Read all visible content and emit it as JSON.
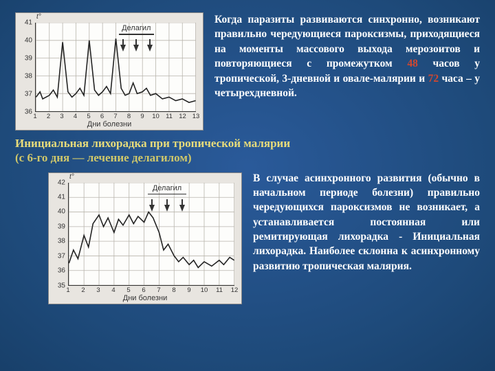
{
  "para1": {
    "t1": "Когда паразиты развиваются синхронно, возникают правильно чередующиеся пароксизмы, приходящиеся на моменты массового выхода мерозоитов и повторяющиеся с промежутком ",
    "h1": "48",
    "t2": " часов у ",
    "b1": "тропической, 3-дневной и овале-малярии",
    "t3": " и ",
    "h2": "72",
    "t4": " часа – у ",
    "b2": "четырехдневной",
    "t5": "."
  },
  "caption": {
    "line1": "Инициальная лихорадка при тропической малярии",
    "line2": "(с 6-го дня — лечение делагилом)"
  },
  "para2": {
    "t1": "В случае асинхронного развития (обычно в начальном периоде болезни) правильно чередующихся пароксизмов не возникает, а устанавливается постоянная или ремитирующая лихорадка - ",
    "b1": "Инициальная лихорадка",
    "t2": ". Наиболее склонна к асинхронному развитию тропическая малярия."
  },
  "chart1": {
    "y_axis_title": "t°",
    "x_axis_title": "Дни болезни",
    "drug_label": "Делагил",
    "y_min": 36,
    "y_max": 41,
    "y_ticks": [
      36,
      37,
      38,
      39,
      40,
      41
    ],
    "x_min": 1,
    "x_max": 13,
    "x_ticks": [
      1,
      2,
      3,
      4,
      5,
      6,
      7,
      8,
      9,
      10,
      11,
      12,
      13
    ],
    "grid_color": "#b8b4ac",
    "line_color": "#222222",
    "line_width": 1.6,
    "bg": "#fdfdfb",
    "series": [
      [
        1,
        36.8
      ],
      [
        1.3,
        37.1
      ],
      [
        1.5,
        36.7
      ],
      [
        2,
        36.9
      ],
      [
        2.3,
        37.2
      ],
      [
        2.6,
        36.8
      ],
      [
        3,
        39.9
      ],
      [
        3.4,
        37.1
      ],
      [
        3.7,
        36.8
      ],
      [
        4,
        37.0
      ],
      [
        4.3,
        37.3
      ],
      [
        4.6,
        36.9
      ],
      [
        5,
        40.0
      ],
      [
        5.4,
        37.2
      ],
      [
        5.7,
        36.9
      ],
      [
        6,
        37.1
      ],
      [
        6.3,
        37.4
      ],
      [
        6.6,
        37.0
      ],
      [
        7,
        40.1
      ],
      [
        7.4,
        37.3
      ],
      [
        7.7,
        36.9
      ],
      [
        8,
        37.0
      ],
      [
        8.3,
        37.6
      ],
      [
        8.6,
        37.0
      ],
      [
        9,
        37.1
      ],
      [
        9.3,
        37.3
      ],
      [
        9.6,
        36.9
      ],
      [
        10,
        37.0
      ],
      [
        10.5,
        36.7
      ],
      [
        11,
        36.8
      ],
      [
        11.5,
        36.6
      ],
      [
        12,
        36.7
      ],
      [
        12.5,
        36.5
      ],
      [
        13,
        36.6
      ]
    ],
    "arrows_x": [
      7.5,
      8.5,
      9.5
    ]
  },
  "chart2": {
    "y_axis_title": "t°",
    "x_axis_title": "Дни болезни",
    "drug_label": "Делагил",
    "y_min": 35,
    "y_max": 42,
    "y_ticks": [
      35,
      36,
      37,
      38,
      39,
      40,
      41,
      42
    ],
    "x_min": 1,
    "x_max": 12,
    "x_ticks": [
      1,
      2,
      3,
      4,
      5,
      6,
      7,
      8,
      9,
      10,
      11,
      12
    ],
    "grid_color": "#b8b4ac",
    "line_color": "#222222",
    "line_width": 1.6,
    "bg": "#fdfdfb",
    "series": [
      [
        1,
        36.5
      ],
      [
        1.3,
        37.4
      ],
      [
        1.6,
        36.8
      ],
      [
        2,
        38.4
      ],
      [
        2.3,
        37.6
      ],
      [
        2.6,
        39.2
      ],
      [
        3,
        39.8
      ],
      [
        3.3,
        39.0
      ],
      [
        3.6,
        39.6
      ],
      [
        4,
        38.6
      ],
      [
        4.3,
        39.5
      ],
      [
        4.6,
        39.1
      ],
      [
        5,
        39.8
      ],
      [
        5.3,
        39.2
      ],
      [
        5.6,
        39.7
      ],
      [
        6,
        39.3
      ],
      [
        6.3,
        40.0
      ],
      [
        6.6,
        39.6
      ],
      [
        7,
        38.6
      ],
      [
        7.3,
        37.4
      ],
      [
        7.6,
        37.8
      ],
      [
        8,
        37.0
      ],
      [
        8.3,
        36.6
      ],
      [
        8.6,
        36.9
      ],
      [
        9,
        36.4
      ],
      [
        9.3,
        36.7
      ],
      [
        9.6,
        36.2
      ],
      [
        10,
        36.6
      ],
      [
        10.5,
        36.3
      ],
      [
        11,
        36.7
      ],
      [
        11.3,
        36.4
      ],
      [
        11.7,
        36.9
      ],
      [
        12,
        36.7
      ]
    ],
    "arrows_x": [
      6.5,
      7.5,
      8.5
    ]
  }
}
